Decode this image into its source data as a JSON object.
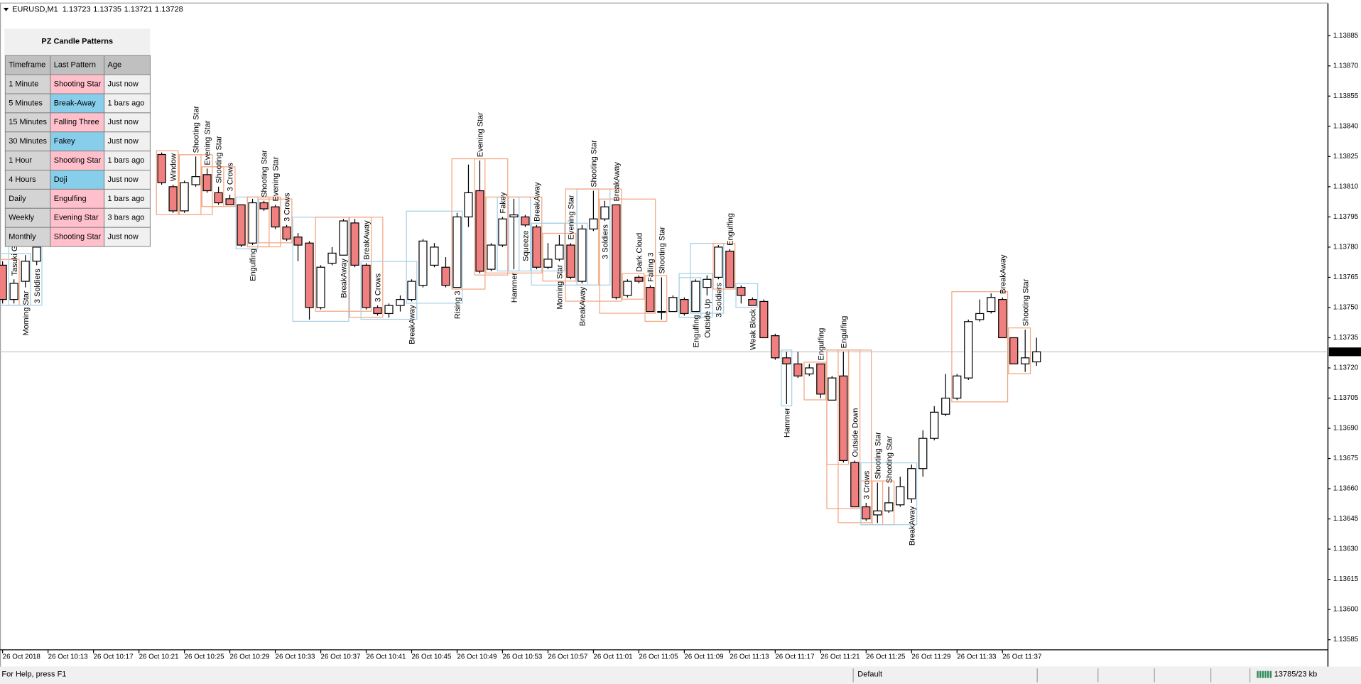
{
  "header": {
    "symbol": "EURUSD,M1"
  },
  "chart_data": {
    "type": "candlestick",
    "categories": [
      "26 Oct 2018",
      null,
      null,
      null,
      "26 Oct 10:13",
      null,
      null,
      null,
      "26 Oct 10:17",
      null,
      null,
      null,
      "26 Oct 10:21",
      null,
      null,
      null,
      "26 Oct 10:25",
      null,
      null,
      null,
      "26 Oct 10:29",
      null,
      null,
      null,
      "26 Oct 10:33",
      null,
      null,
      null,
      "26 Oct 10:37",
      null,
      null,
      null,
      "26 Oct 10:41",
      null,
      null,
      null,
      "26 Oct 10:45",
      null,
      null,
      null,
      "26 Oct 10:49",
      null,
      null,
      null,
      "26 Oct 10:53",
      null,
      null,
      null,
      "26 Oct 10:57",
      null,
      null,
      null,
      "26 Oct 11:01",
      null,
      null,
      null,
      "26 Oct 11:05",
      null,
      null,
      null,
      "26 Oct 11:09",
      null,
      null,
      null,
      "26 Oct 11:13",
      null,
      null,
      null,
      "26 Oct 11:17",
      null,
      null,
      null,
      "26 Oct 11:21",
      null,
      null,
      null,
      "26 Oct 11:25",
      null,
      null,
      null,
      "26 Oct 11:29",
      null,
      null,
      null,
      "26 Oct 11:33",
      null,
      null,
      null,
      "26 Oct 11:37",
      null,
      null,
      null
    ],
    "open": [
      1.13771,
      1.13754,
      1.13763,
      1.13773,
      null,
      null,
      null,
      null,
      null,
      null,
      null,
      null,
      null,
      null,
      1.13826,
      1.1381,
      1.13798,
      1.13811,
      1.13816,
      1.13807,
      1.13804,
      1.13801,
      1.13782,
      1.13802,
      1.138,
      1.1379,
      1.13785,
      1.13782,
      1.1375,
      1.13772,
      1.13776,
      1.13792,
      1.13771,
      1.1375,
      1.13747,
      1.13751,
      1.13754,
      1.13761,
      1.13771,
      1.1377,
      1.1376,
      1.13795,
      1.13808,
      1.13769,
      1.13781,
      1.13795,
      1.13795,
      1.1379,
      1.1377,
      1.13774,
      1.13781,
      1.13763,
      1.13789,
      1.13794,
      1.13801,
      1.13756,
      1.13765,
      1.1376,
      1.13748,
      1.13748,
      1.13754,
      1.13748,
      1.1376,
      1.13765,
      1.13778,
      1.1376,
      1.13754,
      1.13753,
      1.13736,
      1.13725,
      1.13722,
      1.13717,
      1.13722,
      1.13704,
      1.13716,
      1.13673,
      1.13651,
      1.13647,
      1.13649,
      1.13652,
      1.13655,
      1.1367,
      1.13685,
      1.13697,
      1.13705,
      1.13715,
      1.13744,
      1.13748,
      1.13754,
      1.13735,
      1.13722,
      1.13723
    ],
    "high": [
      1.13773,
      1.13764,
      1.13776,
      1.13782,
      null,
      null,
      null,
      null,
      null,
      null,
      null,
      null,
      null,
      null,
      1.13827,
      1.13811,
      1.13813,
      1.13825,
      1.13819,
      1.1381,
      1.13806,
      1.13801,
      1.13804,
      1.13803,
      1.13801,
      1.13791,
      1.13787,
      1.13783,
      1.13771,
      1.1378,
      1.13794,
      1.13794,
      1.13772,
      1.13751,
      1.13752,
      1.13756,
      1.13764,
      1.13784,
      1.13782,
      1.13775,
      1.13797,
      1.13821,
      1.13823,
      1.13782,
      1.13795,
      1.13804,
      1.13796,
      1.13791,
      1.13782,
      1.13786,
      1.13782,
      1.13791,
      1.13808,
      1.13803,
      1.13801,
      1.13764,
      1.13766,
      1.13761,
      1.13765,
      1.13756,
      1.13755,
      1.13764,
      1.13766,
      1.13781,
      1.13779,
      1.13761,
      1.13755,
      1.13754,
      1.13737,
      1.13728,
      1.13728,
      1.13722,
      1.13722,
      1.13716,
      1.13728,
      1.13674,
      1.13653,
      1.13663,
      1.13661,
      1.13666,
      1.13672,
      1.13689,
      1.13701,
      1.13717,
      1.13717,
      1.13744,
      1.13754,
      1.13757,
      1.13755,
      1.13735,
      1.13739,
      1.13735
    ],
    "low": [
      1.13752,
      1.13752,
      1.1376,
      1.13771,
      null,
      null,
      null,
      null,
      null,
      null,
      null,
      null,
      null,
      null,
      1.13811,
      1.13797,
      1.13797,
      1.1381,
      1.13807,
      1.13801,
      1.13801,
      1.1378,
      1.13781,
      1.13798,
      1.13789,
      1.13783,
      1.13773,
      1.13744,
      1.13749,
      1.13771,
      1.13776,
      1.1377,
      1.13749,
      1.13746,
      1.13745,
      1.13748,
      1.13753,
      1.1376,
      1.1377,
      1.1376,
      1.1376,
      1.1379,
      1.13767,
      1.13768,
      1.1378,
      1.13769,
      1.1379,
      1.13769,
      1.13769,
      1.13773,
      1.13764,
      1.13762,
      1.13788,
      1.13793,
      1.13754,
      1.13755,
      1.13762,
      1.13748,
      1.13744,
      1.13748,
      1.13746,
      1.13748,
      1.13756,
      1.13764,
      1.1376,
      1.13752,
      1.13751,
      1.13735,
      1.13724,
      1.13702,
      1.13715,
      1.13716,
      1.13705,
      1.13704,
      1.13673,
      1.13651,
      1.13644,
      1.13643,
      1.13648,
      1.13651,
      1.13653,
      1.13666,
      1.13684,
      1.13696,
      1.13704,
      1.13714,
      1.13743,
      1.13747,
      1.13735,
      1.13722,
      1.13718,
      1.13721
    ],
    "close": [
      1.13754,
      1.13762,
      1.13773,
      1.1378,
      null,
      null,
      null,
      null,
      null,
      null,
      null,
      null,
      null,
      null,
      1.13812,
      1.13798,
      1.13812,
      1.13815,
      1.13808,
      1.13802,
      1.13801,
      1.13781,
      1.13802,
      1.13799,
      1.1379,
      1.13784,
      1.13781,
      1.1375,
      1.1377,
      1.13777,
      1.13793,
      1.13771,
      1.1375,
      1.13747,
      1.13751,
      1.13754,
      1.13763,
      1.13783,
      1.1378,
      1.13761,
      1.13795,
      1.13807,
      1.13768,
      1.13781,
      1.13794,
      1.13796,
      1.13791,
      1.1377,
      1.13774,
      1.13781,
      1.13765,
      1.13789,
      1.13794,
      1.138,
      1.13755,
      1.13763,
      1.13763,
      1.13748,
      1.13748,
      1.13755,
      1.13747,
      1.13763,
      1.13764,
      1.1378,
      1.1376,
      1.13756,
      1.13751,
      1.13735,
      1.13725,
      1.13722,
      1.13716,
      1.1372,
      1.13707,
      1.13715,
      1.13674,
      1.13651,
      1.13645,
      1.13649,
      1.13653,
      1.13661,
      1.1367,
      1.13685,
      1.13698,
      1.13705,
      1.13716,
      1.13743,
      1.13747,
      1.13755,
      1.13735,
      1.13722,
      1.13725,
      1.13728
    ],
    "up_color": "#ffffff",
    "down_color": "#f08080",
    "ylim": [
      1.1358,
      1.13901
    ],
    "yticks": [
      1.13885,
      {
        "value": 1.1387,
        "label": "1.13870"
      },
      1.13855,
      {
        "value": 1.1384,
        "label": "1.13840"
      },
      1.13825,
      {
        "value": 1.1381,
        "label": "1.13810"
      },
      1.13795,
      {
        "value": 1.1378,
        "label": "1.13780"
      },
      1.13765,
      {
        "value": 1.1375,
        "label": "1.13750"
      },
      1.13735,
      {
        "value": 1.1372,
        "label": "1.13720"
      },
      1.13705,
      {
        "value": 1.1369,
        "label": "1.13690"
      },
      1.13675,
      {
        "value": 1.1366,
        "label": "1.13660"
      },
      1.13645,
      {
        "value": 1.1363,
        "label": "1.13630"
      },
      1.13615,
      {
        "value": 1.136,
        "label": "1.13600"
      },
      1.13585
    ],
    "grid": false,
    "pattern_colors": {
      "bearish": {
        "text": "#ff0000",
        "box": "#f4a582"
      },
      "bullish": {
        "text": "#0000ff",
        "box": "#a8d0e6"
      },
      "neutral": {
        "text": "#008b8b",
        "box": "#a8d0e6"
      }
    },
    "patterns": [
      {
        "label": "Tasuki Gap",
        "candle": 1,
        "signal": "bearish",
        "bars": 3
      },
      {
        "label": "Morning Star",
        "candle": 2,
        "signal": "bullish",
        "bars": 3
      },
      {
        "label": "3 Soldiers",
        "candle": 3,
        "signal": "bullish",
        "bars": 3
      },
      {
        "label": "Window",
        "candle": 15,
        "signal": "bearish",
        "bars": 2
      },
      {
        "label": "Shooting Star",
        "candle": 17,
        "signal": "bearish",
        "bars": 2
      },
      {
        "label": "Evening Star",
        "candle": 18,
        "signal": "bearish",
        "bars": 3
      },
      {
        "label": "Shooting Star",
        "candle": 19,
        "signal": "bearish",
        "bars": 2
      },
      {
        "label": "3 Crows",
        "candle": 20,
        "signal": "bearish",
        "bars": 3
      },
      {
        "label": "Engulfing",
        "candle": 22,
        "signal": "bullish",
        "bars": 2
      },
      {
        "label": "Shooting Star",
        "candle": 23,
        "signal": "bearish",
        "bars": 2
      },
      {
        "label": "Evening Star",
        "candle": 24,
        "signal": "bearish",
        "bars": 3
      },
      {
        "label": "3 Crows",
        "candle": 25,
        "signal": "bearish",
        "bars": 3
      },
      {
        "label": "BreakAway",
        "candle": 30,
        "signal": "bullish",
        "bars": 5
      },
      {
        "label": "BreakAway",
        "candle": 32,
        "signal": "bearish",
        "bars": 5
      },
      {
        "label": "3 Crows",
        "candle": 33,
        "signal": "bearish",
        "bars": 3
      },
      {
        "label": "BreakAway",
        "candle": 36,
        "signal": "bullish",
        "bars": 5
      },
      {
        "label": "Rising 3",
        "candle": 40,
        "signal": "bullish",
        "bars": 5
      },
      {
        "label": "Evening Star",
        "candle": 42,
        "signal": "bearish",
        "bars": 3
      },
      {
        "label": "Fakey",
        "candle": 44,
        "signal": "bearish",
        "bars": 3
      },
      {
        "label": "Hammer",
        "candle": 45,
        "signal": "bullish",
        "bars": 1
      },
      {
        "label": "Squeeze",
        "candle": 46,
        "signal": "neutral",
        "bars": 3
      },
      {
        "label": "BreakAway",
        "candle": 47,
        "signal": "bearish",
        "bars": 5
      },
      {
        "label": "Morning Star",
        "candle": 49,
        "signal": "bullish",
        "bars": 3
      },
      {
        "label": "Evening Star",
        "candle": 50,
        "signal": "bearish",
        "bars": 3
      },
      {
        "label": "BreakAway",
        "candle": 51,
        "signal": "bullish",
        "bars": 5
      },
      {
        "label": "Shooting Star",
        "candle": 52,
        "signal": "bearish",
        "bars": 2
      },
      {
        "label": "3 Soldiers",
        "candle": 53,
        "signal": "bullish",
        "bars": 3
      },
      {
        "label": "BreakAway",
        "candle": 54,
        "signal": "bearish",
        "bars": 5
      },
      {
        "label": "Dark Cloud",
        "candle": 56,
        "signal": "bearish",
        "bars": 2
      },
      {
        "label": "Falling 3",
        "candle": 57,
        "signal": "bearish",
        "bars": 5
      },
      {
        "label": "Shooting Star",
        "candle": 58,
        "signal": "bearish",
        "bars": 2
      },
      {
        "label": "Engulfing",
        "candle": 61,
        "signal": "bullish",
        "bars": 2
      },
      {
        "label": "Outside Up",
        "candle": 62,
        "signal": "bullish",
        "bars": 3
      },
      {
        "label": "3 Soldiers",
        "candle": 63,
        "signal": "bullish",
        "bars": 3
      },
      {
        "label": "Engulfing",
        "candle": 64,
        "signal": "bearish",
        "bars": 2
      },
      {
        "label": "Weak Block",
        "candle": 66,
        "signal": "bullish",
        "bars": 2
      },
      {
        "label": "Hammer",
        "candle": 69,
        "signal": "bullish",
        "bars": 1
      },
      {
        "label": "Engulfing",
        "candle": 72,
        "signal": "bearish",
        "bars": 2
      },
      {
        "label": "Engulfing",
        "candle": 74,
        "signal": "bearish",
        "bars": 2
      },
      {
        "label": "Outside Down",
        "candle": 75,
        "signal": "bearish",
        "bars": 3
      },
      {
        "label": "3 Crows",
        "candle": 76,
        "signal": "bearish",
        "bars": 3
      },
      {
        "label": "Shooting Star",
        "candle": 77,
        "signal": "bearish",
        "bars": 2
      },
      {
        "label": "Shooting Star",
        "candle": 78,
        "signal": "bearish",
        "bars": 2
      },
      {
        "label": "BreakAway",
        "candle": 80,
        "signal": "bullish",
        "bars": 5
      },
      {
        "label": "BreakAway",
        "candle": 88,
        "signal": "bearish",
        "bars": 5
      },
      {
        "label": "Shooting Star",
        "candle": 90,
        "signal": "bearish",
        "bars": 2
      }
    ]
  },
  "table": {
    "title": "PZ Candle Patterns",
    "columns": [
      "Timeframe",
      "Last Pattern",
      "Age"
    ],
    "rows": [
      [
        "1 Minute",
        "Shooting Star",
        "Just now"
      ],
      [
        "5 Minutes",
        "Break-Away",
        "1 bars ago"
      ],
      [
        "15 Minutes",
        "Falling Three",
        "Just now"
      ],
      [
        "30 Minutes",
        "Fakey",
        "Just now"
      ],
      [
        "1 Hour",
        "Shooting Star",
        "1 bars ago"
      ],
      [
        "4 Hours",
        "Doji",
        "Just now"
      ],
      [
        "Daily",
        "Engulfing",
        "1 bars ago"
      ],
      [
        "Weekly",
        "Evening Star",
        "3 bars ago"
      ],
      [
        "Monthly",
        "Shooting Star",
        "Just now"
      ]
    ],
    "signals": [
      "bearish",
      "bullish",
      "bearish",
      "bullish",
      "bearish",
      "bullish",
      "bearish",
      "bearish",
      "bearish"
    ],
    "signal_colors": {
      "bearish": "#ffc0cb",
      "bullish": "#87ceeb"
    }
  },
  "status_bar": {
    "help": "For Help, press F1",
    "profile": "Default",
    "traffic": "13785/23 kb"
  }
}
